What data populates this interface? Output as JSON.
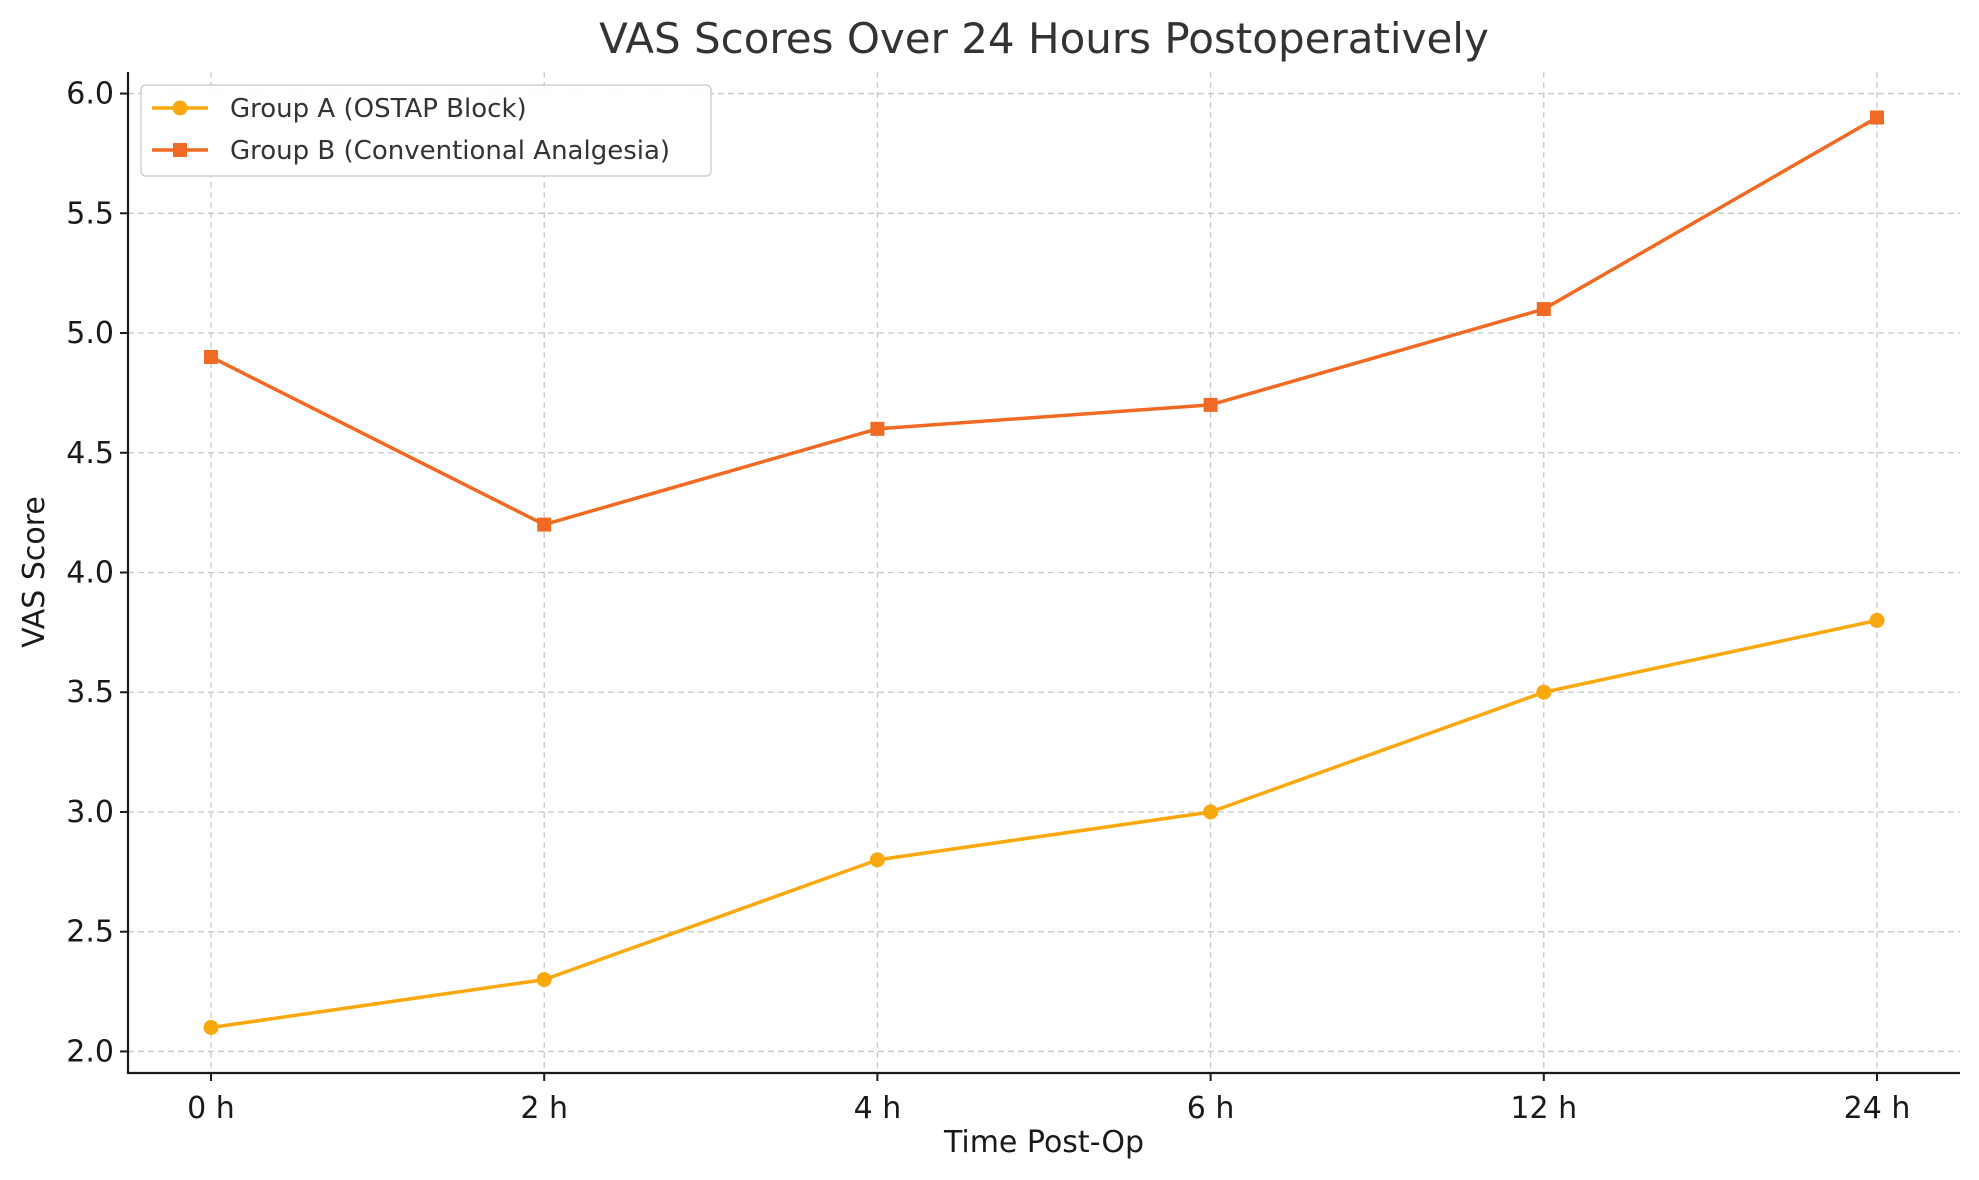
{
  "chart_data": {
    "type": "line",
    "title": "VAS Scores Over 24 Hours Postoperatively",
    "xlabel": "Time Post-Op",
    "ylabel": "VAS Score",
    "categories": [
      "0 h",
      "2 h",
      "4 h",
      "6 h",
      "12 h",
      "24 h"
    ],
    "ylim": [
      1.91,
      6.09
    ],
    "yticks": [
      2.0,
      2.5,
      3.0,
      3.5,
      4.0,
      4.5,
      5.0,
      5.5,
      6.0
    ],
    "ytick_labels": [
      "2.0",
      "2.5",
      "3.0",
      "3.5",
      "4.0",
      "4.5",
      "5.0",
      "5.5",
      "6.0"
    ],
    "grid": true,
    "legend_position": "top-left",
    "series": [
      {
        "name": "Group A (OSTAP Block)",
        "values": [
          2.1,
          2.3,
          2.8,
          3.0,
          3.5,
          3.8
        ],
        "color": "#F9A90E",
        "marker": "circle"
      },
      {
        "name": "Group B (Conventional Analgesia)",
        "values": [
          4.9,
          4.2,
          4.6,
          4.7,
          5.1,
          5.9
        ],
        "color": "#F06A23",
        "marker": "square"
      }
    ]
  }
}
